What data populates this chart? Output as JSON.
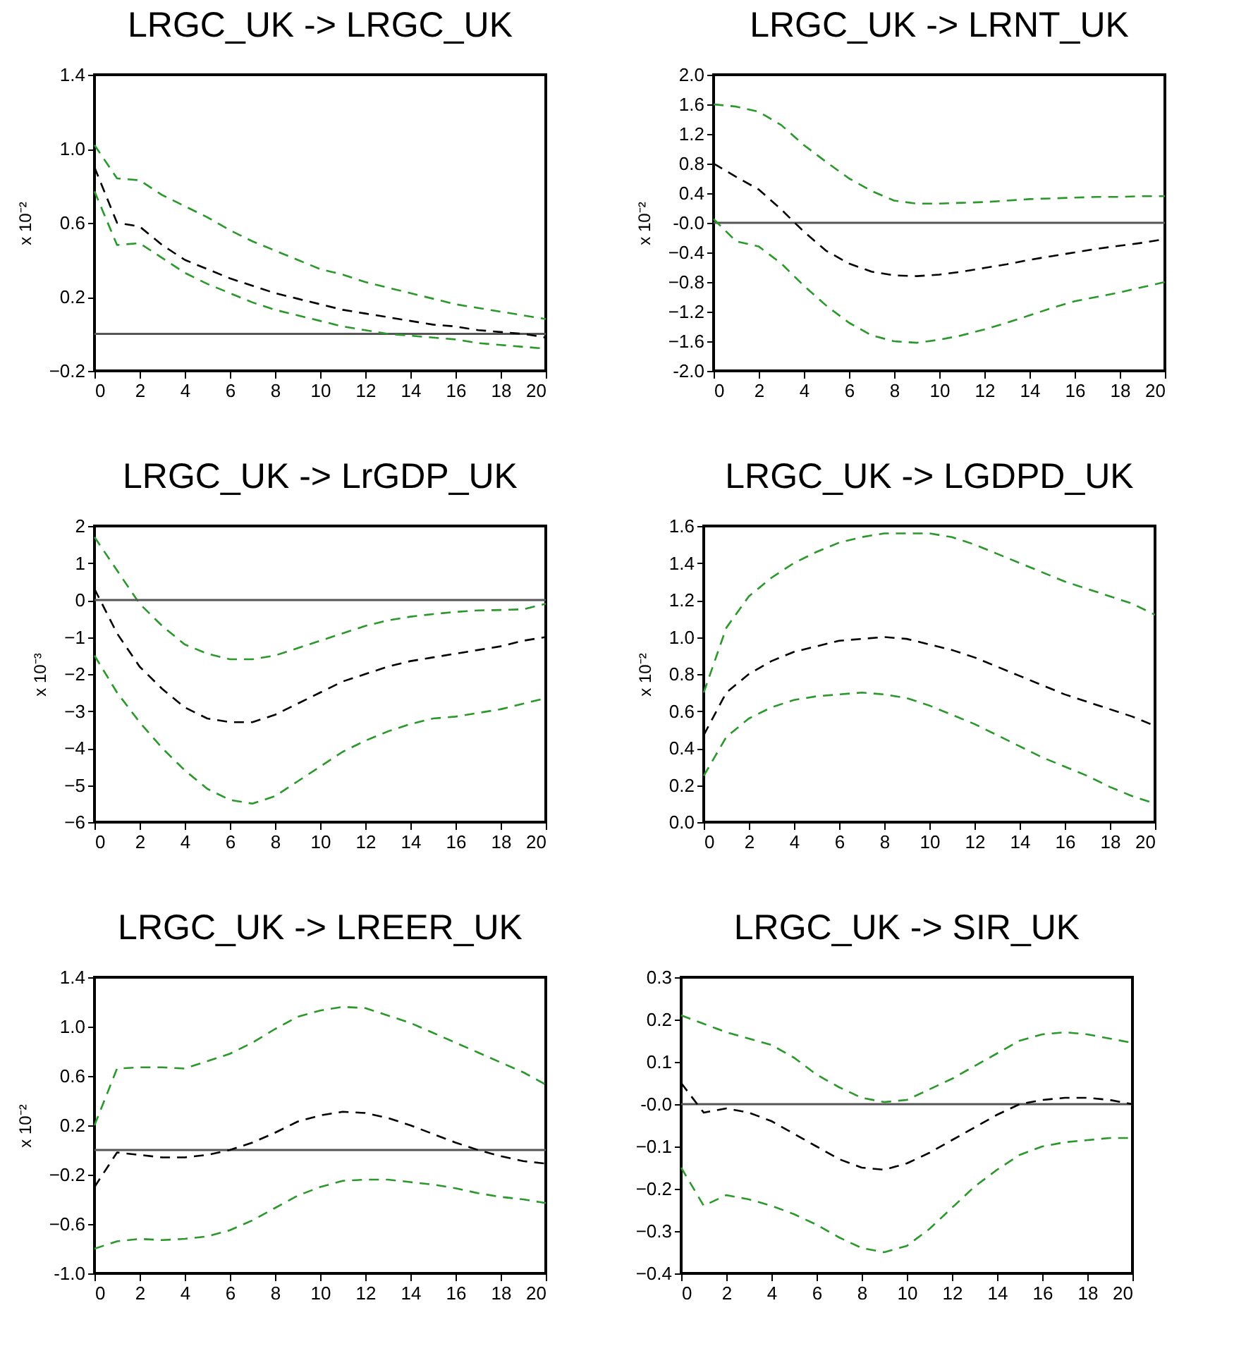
{
  "chart_data": [
    {
      "type": "line",
      "title": "LRGC_UK -> LRGC_UK",
      "ylabel": "x 10⁻²",
      "x": [
        0,
        1,
        2,
        3,
        4,
        5,
        6,
        7,
        8,
        9,
        10,
        11,
        12,
        13,
        14,
        15,
        16,
        17,
        18,
        19,
        20
      ],
      "xlim": [
        0,
        20
      ],
      "xticks": [
        0,
        2,
        4,
        6,
        8,
        10,
        12,
        14,
        16,
        18,
        20
      ],
      "ylim": [
        -0.2,
        1.4
      ],
      "yticks": [
        -0.2,
        0.2,
        0.6,
        {
          "value": 1.0,
          "label": "1.0"
        },
        1.4
      ],
      "grid": false,
      "line_style": "dashed",
      "ref_lines": [
        {
          "axis": "y",
          "value": 0,
          "color": "#555555"
        }
      ],
      "series": [
        {
          "color": "#2a982a",
          "values": [
            1.02,
            0.84,
            0.83,
            0.75,
            0.69,
            0.63,
            0.56,
            0.5,
            0.45,
            0.4,
            0.35,
            0.32,
            0.28,
            0.25,
            0.22,
            0.19,
            0.16,
            0.14,
            0.12,
            0.1,
            0.08
          ]
        },
        {
          "color": "#000000",
          "values": [
            0.9,
            0.6,
            0.58,
            0.48,
            0.4,
            0.35,
            0.3,
            0.26,
            0.22,
            0.19,
            0.16,
            0.13,
            0.11,
            0.09,
            0.07,
            0.05,
            0.04,
            0.02,
            0.01,
            0.0,
            -0.02
          ]
        },
        {
          "color": "#2a982a",
          "values": [
            0.77,
            0.48,
            0.49,
            0.41,
            0.33,
            0.27,
            0.22,
            0.17,
            0.13,
            0.1,
            0.07,
            0.04,
            0.02,
            0.0,
            -0.01,
            -0.02,
            -0.03,
            -0.05,
            -0.06,
            -0.07,
            -0.08
          ]
        }
      ]
    },
    {
      "type": "line",
      "title": "LRGC_UK -> LRNT_UK",
      "ylabel": "x 10⁻²",
      "x": [
        0,
        1,
        2,
        3,
        4,
        5,
        6,
        7,
        8,
        9,
        10,
        11,
        12,
        13,
        14,
        15,
        16,
        17,
        18,
        19,
        20
      ],
      "xlim": [
        0,
        20
      ],
      "xticks": [
        0,
        2,
        4,
        6,
        8,
        10,
        12,
        14,
        16,
        18,
        20
      ],
      "ylim": [
        -2.0,
        2.0
      ],
      "yticks": [
        {
          "value": -2.0,
          "label": "-2.0"
        },
        -1.6,
        -1.2,
        -0.8,
        -0.4,
        {
          "value": 0,
          "label": "-0.0"
        },
        0.4,
        0.8,
        1.2,
        1.6,
        {
          "value": 2.0,
          "label": "2.0"
        }
      ],
      "grid": false,
      "line_style": "dashed",
      "ref_lines": [
        {
          "axis": "y",
          "value": 0,
          "color": "#555555"
        }
      ],
      "series": [
        {
          "color": "#2a982a",
          "values": [
            1.6,
            1.57,
            1.5,
            1.32,
            1.05,
            0.82,
            0.6,
            0.43,
            0.3,
            0.26,
            0.26,
            0.27,
            0.28,
            0.3,
            0.32,
            0.33,
            0.34,
            0.35,
            0.35,
            0.36,
            0.36
          ]
        },
        {
          "color": "#000000",
          "values": [
            0.8,
            0.62,
            0.45,
            0.18,
            -0.12,
            -0.38,
            -0.55,
            -0.66,
            -0.71,
            -0.72,
            -0.7,
            -0.66,
            -0.61,
            -0.56,
            -0.5,
            -0.45,
            -0.4,
            -0.35,
            -0.31,
            -0.27,
            -0.22
          ]
        },
        {
          "color": "#2a982a",
          "values": [
            0.05,
            -0.25,
            -0.32,
            -0.55,
            -0.85,
            -1.12,
            -1.35,
            -1.52,
            -1.6,
            -1.62,
            -1.58,
            -1.52,
            -1.44,
            -1.35,
            -1.25,
            -1.15,
            -1.06,
            -1.0,
            -0.94,
            -0.87,
            -0.8
          ]
        }
      ]
    },
    {
      "type": "line",
      "title": "LRGC_UK -> LrGDP_UK",
      "ylabel": "x 10⁻³",
      "x": [
        0,
        1,
        2,
        3,
        4,
        5,
        6,
        7,
        8,
        9,
        10,
        11,
        12,
        13,
        14,
        15,
        16,
        17,
        18,
        19,
        20
      ],
      "xlim": [
        0,
        20
      ],
      "xticks": [
        0,
        2,
        4,
        6,
        8,
        10,
        12,
        14,
        16,
        18,
        20
      ],
      "ylim": [
        -6,
        2
      ],
      "yticks": [
        -6,
        -5,
        -4,
        -3,
        -2,
        -1,
        0,
        1,
        2
      ],
      "grid": false,
      "line_style": "dashed",
      "ref_lines": [
        {
          "axis": "y",
          "value": 0,
          "color": "#555555"
        }
      ],
      "series": [
        {
          "color": "#2a982a",
          "values": [
            1.7,
            0.8,
            -0.1,
            -0.7,
            -1.2,
            -1.45,
            -1.6,
            -1.6,
            -1.5,
            -1.3,
            -1.1,
            -0.9,
            -0.7,
            -0.55,
            -0.45,
            -0.38,
            -0.32,
            -0.28,
            -0.27,
            -0.25,
            -0.1
          ]
        },
        {
          "color": "#000000",
          "values": [
            0.3,
            -0.9,
            -1.8,
            -2.4,
            -2.9,
            -3.2,
            -3.3,
            -3.3,
            -3.1,
            -2.8,
            -2.5,
            -2.2,
            -2.0,
            -1.8,
            -1.65,
            -1.55,
            -1.45,
            -1.35,
            -1.25,
            -1.1,
            -1.0
          ]
        },
        {
          "color": "#2a982a",
          "values": [
            -1.5,
            -2.5,
            -3.3,
            -4.0,
            -4.6,
            -5.1,
            -5.4,
            -5.5,
            -5.3,
            -4.9,
            -4.5,
            -4.1,
            -3.8,
            -3.55,
            -3.35,
            -3.2,
            -3.15,
            -3.05,
            -2.95,
            -2.8,
            -2.65
          ]
        }
      ]
    },
    {
      "type": "line",
      "title": "LRGC_UK -> LGDPD_UK",
      "ylabel": "x 10⁻²",
      "x": [
        0,
        1,
        2,
        3,
        4,
        5,
        6,
        7,
        8,
        9,
        10,
        11,
        12,
        13,
        14,
        15,
        16,
        17,
        18,
        19,
        20
      ],
      "xlim": [
        0,
        20
      ],
      "xticks": [
        0,
        2,
        4,
        6,
        8,
        10,
        12,
        14,
        16,
        18,
        20
      ],
      "ylim": [
        0,
        1.6
      ],
      "yticks": [
        {
          "value": 0,
          "label": "0.0"
        },
        0.2,
        0.4,
        0.6,
        0.8,
        {
          "value": 1.0,
          "label": "1.0"
        },
        1.2,
        1.4,
        1.6
      ],
      "grid": false,
      "line_style": "dashed",
      "series": [
        {
          "color": "#2a982a",
          "values": [
            0.7,
            1.05,
            1.22,
            1.32,
            1.4,
            1.46,
            1.51,
            1.54,
            1.56,
            1.56,
            1.56,
            1.54,
            1.5,
            1.45,
            1.4,
            1.35,
            1.3,
            1.26,
            1.22,
            1.18,
            1.12
          ]
        },
        {
          "color": "#000000",
          "values": [
            0.47,
            0.7,
            0.8,
            0.87,
            0.92,
            0.95,
            0.98,
            0.99,
            1.0,
            0.99,
            0.96,
            0.93,
            0.89,
            0.84,
            0.79,
            0.74,
            0.69,
            0.65,
            0.61,
            0.57,
            0.52
          ]
        },
        {
          "color": "#2a982a",
          "values": [
            0.25,
            0.46,
            0.56,
            0.62,
            0.66,
            0.68,
            0.69,
            0.7,
            0.69,
            0.67,
            0.63,
            0.58,
            0.53,
            0.47,
            0.41,
            0.35,
            0.3,
            0.25,
            0.19,
            0.14,
            0.1
          ]
        }
      ]
    },
    {
      "type": "line",
      "title": "LRGC_UK -> LREER_UK",
      "ylabel": "x 10⁻²",
      "x": [
        0,
        1,
        2,
        3,
        4,
        5,
        6,
        7,
        8,
        9,
        10,
        11,
        12,
        13,
        14,
        15,
        16,
        17,
        18,
        19,
        20
      ],
      "xlim": [
        0,
        20
      ],
      "xticks": [
        0,
        2,
        4,
        6,
        8,
        10,
        12,
        14,
        16,
        18,
        20
      ],
      "ylim": [
        -1.0,
        1.4
      ],
      "yticks": [
        {
          "value": -1.0,
          "label": "-1.0"
        },
        -0.6,
        -0.2,
        0.2,
        0.6,
        {
          "value": 1.0,
          "label": "1.0"
        },
        1.4
      ],
      "grid": false,
      "line_style": "dashed",
      "ref_lines": [
        {
          "axis": "y",
          "value": 0,
          "color": "#555555"
        }
      ],
      "series": [
        {
          "color": "#2a982a",
          "values": [
            0.2,
            0.66,
            0.67,
            0.67,
            0.66,
            0.72,
            0.78,
            0.87,
            0.98,
            1.08,
            1.13,
            1.16,
            1.15,
            1.09,
            1.03,
            0.95,
            0.87,
            0.79,
            0.71,
            0.63,
            0.53
          ]
        },
        {
          "color": "#000000",
          "values": [
            -0.3,
            -0.02,
            -0.04,
            -0.06,
            -0.06,
            -0.04,
            0.0,
            0.06,
            0.14,
            0.23,
            0.28,
            0.31,
            0.3,
            0.26,
            0.2,
            0.13,
            0.06,
            0.0,
            -0.05,
            -0.09,
            -0.11
          ]
        },
        {
          "color": "#2a982a",
          "values": [
            -0.8,
            -0.74,
            -0.72,
            -0.73,
            -0.72,
            -0.7,
            -0.65,
            -0.57,
            -0.47,
            -0.37,
            -0.3,
            -0.25,
            -0.24,
            -0.24,
            -0.26,
            -0.28,
            -0.31,
            -0.35,
            -0.38,
            -0.4,
            -0.43
          ]
        }
      ]
    },
    {
      "type": "line",
      "title": "LRGC_UK -> SIR_UK",
      "x": [
        0,
        1,
        2,
        3,
        4,
        5,
        6,
        7,
        8,
        9,
        10,
        11,
        12,
        13,
        14,
        15,
        16,
        17,
        18,
        19,
        20
      ],
      "xlim": [
        0,
        20
      ],
      "xticks": [
        0,
        2,
        4,
        6,
        8,
        10,
        12,
        14,
        16,
        18,
        20
      ],
      "ylim": [
        -0.4,
        0.3
      ],
      "yticks": [
        -0.4,
        -0.3,
        -0.2,
        -0.1,
        {
          "value": 0,
          "label": "-0.0"
        },
        0.1,
        0.2,
        0.3
      ],
      "grid": false,
      "line_style": "dashed",
      "ref_lines": [
        {
          "axis": "y",
          "value": 0,
          "color": "#555555"
        }
      ],
      "series": [
        {
          "color": "#2a982a",
          "values": [
            0.21,
            0.19,
            0.17,
            0.155,
            0.14,
            0.11,
            0.07,
            0.04,
            0.015,
            0.005,
            0.01,
            0.035,
            0.06,
            0.09,
            0.12,
            0.15,
            0.165,
            0.17,
            0.165,
            0.155,
            0.145
          ]
        },
        {
          "color": "#000000",
          "values": [
            0.05,
            -0.02,
            -0.01,
            -0.02,
            -0.04,
            -0.07,
            -0.1,
            -0.13,
            -0.15,
            -0.155,
            -0.14,
            -0.115,
            -0.085,
            -0.055,
            -0.025,
            0.0,
            0.01,
            0.015,
            0.015,
            0.01,
            0.0
          ]
        },
        {
          "color": "#2a982a",
          "values": [
            -0.15,
            -0.24,
            -0.215,
            -0.225,
            -0.24,
            -0.26,
            -0.285,
            -0.315,
            -0.34,
            -0.35,
            -0.335,
            -0.295,
            -0.245,
            -0.195,
            -0.155,
            -0.12,
            -0.1,
            -0.09,
            -0.085,
            -0.08,
            -0.08
          ]
        }
      ]
    }
  ]
}
